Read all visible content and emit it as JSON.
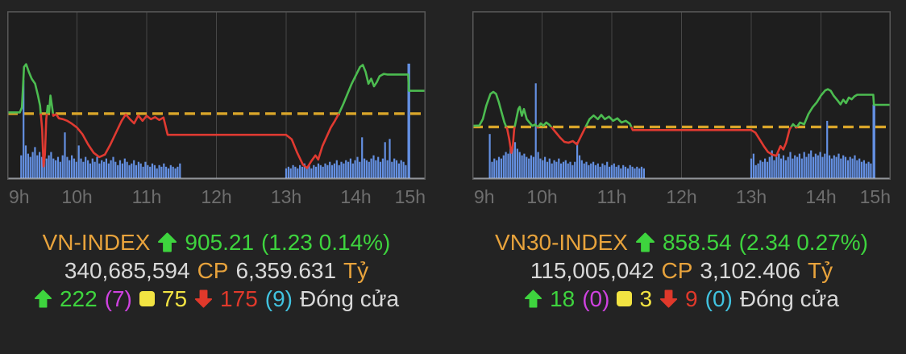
{
  "colors": {
    "bg": "#232323",
    "chart_bg": "#1e1e1e",
    "border": "#585858",
    "grid": "#474747",
    "reference": "#d9a52a",
    "line_green": "#4cbc50",
    "line_red": "#e03a31",
    "volume": "#6490e2",
    "baseline": "#ccd2dc",
    "tick": "#6e6e6e",
    "orange": "#e8a33c",
    "green": "#3ed43e",
    "white": "#d9d9d9",
    "magenta": "#cf42e0",
    "yellow": "#f2e342",
    "red": "#e0392b",
    "cyan": "#41c3e0"
  },
  "panels": [
    {
      "id": "vn-index",
      "index_label": "VN-INDEX",
      "index_value": "905.21",
      "index_change": "(1.23 0.14%)",
      "direction": "up",
      "shares": "340,685,594",
      "shares_unit": "CP",
      "turnover": "6,359.631",
      "turnover_unit": "Tỷ",
      "advancers": "222",
      "ceiling": "(7)",
      "unchanged": "75",
      "decliners": "175",
      "floor": "(9)",
      "session_status": "Đóng cửa",
      "chart_data": {
        "type": "line",
        "title": "VN-INDEX intraday",
        "x_ticks": [
          "9h",
          "10h",
          "11h",
          "12h",
          "13h",
          "14h",
          "15h"
        ],
        "x_range": [
          9,
          15
        ],
        "y_units": "fraction of plot height from top (chart shows no y-axis labels)",
        "reference_level": 0.607,
        "price_line": [
          [
            9.0,
            0.6
          ],
          [
            9.18,
            0.6
          ],
          [
            9.21,
            0.57
          ],
          [
            9.24,
            0.33
          ],
          [
            9.27,
            0.314
          ],
          [
            9.31,
            0.36
          ],
          [
            9.35,
            0.4
          ],
          [
            9.4,
            0.43
          ],
          [
            9.44,
            0.5
          ],
          [
            9.47,
            0.56
          ],
          [
            9.5,
            0.7
          ],
          [
            9.52,
            0.92
          ],
          [
            9.54,
            0.85
          ],
          [
            9.56,
            0.64
          ],
          [
            9.58,
            0.56
          ],
          [
            9.6,
            0.6
          ],
          [
            9.62,
            0.5
          ],
          [
            9.64,
            0.56
          ],
          [
            9.66,
            0.62
          ],
          [
            9.7,
            0.61
          ],
          [
            9.74,
            0.635
          ],
          [
            9.8,
            0.64
          ],
          [
            9.86,
            0.65
          ],
          [
            9.92,
            0.665
          ],
          [
            10.0,
            0.69
          ],
          [
            10.08,
            0.73
          ],
          [
            10.16,
            0.79
          ],
          [
            10.24,
            0.84
          ],
          [
            10.32,
            0.865
          ],
          [
            10.4,
            0.85
          ],
          [
            10.48,
            0.79
          ],
          [
            10.56,
            0.72
          ],
          [
            10.64,
            0.65
          ],
          [
            10.7,
            0.612
          ],
          [
            10.76,
            0.64
          ],
          [
            10.82,
            0.665
          ],
          [
            10.88,
            0.618
          ],
          [
            10.94,
            0.65
          ],
          [
            11.0,
            0.62
          ],
          [
            11.06,
            0.64
          ],
          [
            11.12,
            0.628
          ],
          [
            11.18,
            0.645
          ],
          [
            11.24,
            0.63
          ],
          [
            11.3,
            0.733
          ],
          [
            13.0,
            0.733
          ],
          [
            13.08,
            0.76
          ],
          [
            13.16,
            0.84
          ],
          [
            13.24,
            0.91
          ],
          [
            13.3,
            0.93
          ],
          [
            13.36,
            0.89
          ],
          [
            13.42,
            0.855
          ],
          [
            13.46,
            0.88
          ],
          [
            13.52,
            0.8
          ],
          [
            13.58,
            0.745
          ],
          [
            13.64,
            0.69
          ],
          [
            13.7,
            0.65
          ],
          [
            13.76,
            0.605
          ],
          [
            13.82,
            0.55
          ],
          [
            13.88,
            0.49
          ],
          [
            13.94,
            0.43
          ],
          [
            14.0,
            0.38
          ],
          [
            14.06,
            0.33
          ],
          [
            14.1,
            0.318
          ],
          [
            14.14,
            0.36
          ],
          [
            14.18,
            0.43
          ],
          [
            14.22,
            0.4
          ],
          [
            14.26,
            0.445
          ],
          [
            14.3,
            0.42
          ],
          [
            14.34,
            0.385
          ],
          [
            14.4,
            0.372
          ],
          [
            14.45,
            0.375
          ],
          [
            14.75,
            0.375
          ],
          [
            14.76,
            0.472
          ],
          [
            15.0,
            0.472
          ]
        ],
        "volume_units": "bar heights as fraction of plot height",
        "volume_segments": [
          {
            "start": 9.2,
            "dt": 0.033,
            "heights": [
              0.14,
              0.6,
              0.2,
              0.15,
              0.13,
              0.16,
              0.19,
              0.14,
              0.16,
              0.13,
              0.15,
              0.12,
              0.14,
              0.16,
              0.12,
              0.11,
              0.13,
              0.1,
              0.14,
              0.28,
              0.13,
              0.11,
              0.14,
              0.12,
              0.1,
              0.2,
              0.12,
              0.1,
              0.13,
              0.11,
              0.09,
              0.12,
              0.1,
              0.13,
              0.09,
              0.11,
              0.1,
              0.12,
              0.09,
              0.11,
              0.13,
              0.1,
              0.08,
              0.11,
              0.09,
              0.12,
              0.1,
              0.08,
              0.09,
              0.11,
              0.08,
              0.1,
              0.09,
              0.07,
              0.1,
              0.08,
              0.07,
              0.09,
              0.08,
              0.06,
              0.08,
              0.07,
              0.09,
              0.07,
              0.06,
              0.08,
              0.07,
              0.06,
              0.07,
              0.09
            ]
          },
          {
            "start": 13.0,
            "dt": 0.033,
            "heights": [
              0.06,
              0.07,
              0.06,
              0.08,
              0.07,
              0.06,
              0.08,
              0.07,
              0.09,
              0.07,
              0.08,
              0.06,
              0.08,
              0.07,
              0.09,
              0.08,
              0.07,
              0.09,
              0.08,
              0.1,
              0.08,
              0.09,
              0.11,
              0.08,
              0.1,
              0.09,
              0.11,
              0.1,
              0.12,
              0.09,
              0.11,
              0.13,
              0.1,
              0.25,
              0.12,
              0.11,
              0.1,
              0.12,
              0.14,
              0.11,
              0.13,
              0.1,
              0.12,
              0.22,
              0.11,
              0.24,
              0.1,
              0.12,
              0.11,
              0.09,
              0.11,
              0.1,
              0.08
            ]
          }
        ],
        "volume_spikes": [
          [
            14.76,
            0.7
          ]
        ]
      }
    },
    {
      "id": "vn30-index",
      "index_label": "VN30-INDEX",
      "index_value": "858.54",
      "index_change": "(2.34 0.27%)",
      "direction": "up",
      "shares": "115,005,042",
      "shares_unit": "CP",
      "turnover": "3,102.406",
      "turnover_unit": "Tỷ",
      "advancers": "18",
      "ceiling": "(0)",
      "unchanged": "3",
      "decliners": "9",
      "floor": "(0)",
      "session_status": "Đóng cửa",
      "chart_data": {
        "type": "line",
        "title": "VN30-INDEX intraday",
        "x_ticks": [
          "9h",
          "10h",
          "11h",
          "12h",
          "13h",
          "14h",
          "15h"
        ],
        "x_range": [
          9,
          15
        ],
        "y_units": "fraction of plot height from top (chart shows no y-axis labels)",
        "reference_level": 0.686,
        "price_line": [
          [
            9.0,
            0.68
          ],
          [
            9.1,
            0.678
          ],
          [
            9.15,
            0.64
          ],
          [
            9.2,
            0.56
          ],
          [
            9.26,
            0.49
          ],
          [
            9.3,
            0.478
          ],
          [
            9.34,
            0.49
          ],
          [
            9.38,
            0.54
          ],
          [
            9.42,
            0.6
          ],
          [
            9.46,
            0.66
          ],
          [
            9.5,
            0.7
          ],
          [
            9.53,
            0.76
          ],
          [
            9.56,
            0.84
          ],
          [
            9.58,
            0.8
          ],
          [
            9.6,
            0.7
          ],
          [
            9.63,
            0.64
          ],
          [
            9.66,
            0.58
          ],
          [
            9.68,
            0.567
          ],
          [
            9.71,
            0.62
          ],
          [
            9.74,
            0.58
          ],
          [
            9.78,
            0.64
          ],
          [
            9.82,
            0.66
          ],
          [
            9.86,
            0.68
          ],
          [
            9.9,
            0.672
          ],
          [
            9.94,
            0.69
          ],
          [
            9.98,
            0.665
          ],
          [
            10.02,
            0.678
          ],
          [
            10.06,
            0.66
          ],
          [
            10.1,
            0.672
          ],
          [
            10.14,
            0.69
          ],
          [
            10.2,
            0.72
          ],
          [
            10.26,
            0.75
          ],
          [
            10.32,
            0.775
          ],
          [
            10.38,
            0.78
          ],
          [
            10.44,
            0.77
          ],
          [
            10.5,
            0.79
          ],
          [
            10.56,
            0.74
          ],
          [
            10.62,
            0.69
          ],
          [
            10.68,
            0.64
          ],
          [
            10.74,
            0.618
          ],
          [
            10.8,
            0.64
          ],
          [
            10.85,
            0.615
          ],
          [
            10.9,
            0.64
          ],
          [
            10.96,
            0.625
          ],
          [
            11.02,
            0.65
          ],
          [
            11.08,
            0.635
          ],
          [
            11.14,
            0.66
          ],
          [
            11.2,
            0.65
          ],
          [
            11.26,
            0.668
          ],
          [
            11.3,
            0.705
          ],
          [
            13.0,
            0.705
          ],
          [
            13.06,
            0.72
          ],
          [
            13.12,
            0.76
          ],
          [
            13.18,
            0.8
          ],
          [
            13.24,
            0.835
          ],
          [
            13.3,
            0.85
          ],
          [
            13.36,
            0.858
          ],
          [
            13.42,
            0.8
          ],
          [
            13.46,
            0.82
          ],
          [
            13.5,
            0.78
          ],
          [
            13.55,
            0.7
          ],
          [
            13.6,
            0.67
          ],
          [
            13.65,
            0.69
          ],
          [
            13.7,
            0.66
          ],
          [
            13.76,
            0.67
          ],
          [
            13.82,
            0.61
          ],
          [
            13.88,
            0.57
          ],
          [
            13.94,
            0.54
          ],
          [
            14.0,
            0.5
          ],
          [
            14.06,
            0.47
          ],
          [
            14.1,
            0.462
          ],
          [
            14.14,
            0.472
          ],
          [
            14.18,
            0.5
          ],
          [
            14.24,
            0.53
          ],
          [
            14.28,
            0.552
          ],
          [
            14.32,
            0.525
          ],
          [
            14.36,
            0.545
          ],
          [
            14.4,
            0.512
          ],
          [
            14.44,
            0.522
          ],
          [
            14.48,
            0.505
          ],
          [
            14.52,
            0.495
          ],
          [
            14.75,
            0.495
          ],
          [
            14.76,
            0.555
          ],
          [
            15.0,
            0.555
          ]
        ],
        "volume_units": "bar heights as fraction of plot height",
        "volume_segments": [
          {
            "start": 9.25,
            "dt": 0.033,
            "heights": [
              0.27,
              0.1,
              0.12,
              0.11,
              0.13,
              0.12,
              0.14,
              0.16,
              0.15,
              0.18,
              0.2,
              0.22,
              0.18,
              0.16,
              0.14,
              0.15,
              0.13,
              0.12,
              0.14,
              0.13,
              0.58,
              0.16,
              0.12,
              0.11,
              0.13,
              0.1,
              0.12,
              0.09,
              0.11,
              0.1,
              0.12,
              0.09,
              0.1,
              0.11,
              0.09,
              0.1,
              0.08,
              0.1,
              0.22,
              0.14,
              0.11,
              0.09,
              0.1,
              0.08,
              0.09,
              0.1,
              0.08,
              0.09,
              0.07,
              0.09,
              0.08,
              0.1,
              0.07,
              0.08,
              0.09,
              0.07,
              0.08,
              0.06,
              0.08,
              0.07,
              0.06,
              0.08,
              0.07,
              0.06,
              0.07,
              0.06,
              0.07,
              0.06
            ]
          },
          {
            "start": 13.0,
            "dt": 0.033,
            "heights": [
              0.12,
              0.15,
              0.08,
              0.09,
              0.11,
              0.1,
              0.12,
              0.1,
              0.13,
              0.17,
              0.11,
              0.13,
              0.15,
              0.12,
              0.14,
              0.11,
              0.13,
              0.16,
              0.12,
              0.14,
              0.13,
              0.15,
              0.12,
              0.16,
              0.13,
              0.15,
              0.17,
              0.13,
              0.15,
              0.14,
              0.16,
              0.13,
              0.15,
              0.35,
              0.14,
              0.12,
              0.14,
              0.13,
              0.15,
              0.12,
              0.14,
              0.13,
              0.11,
              0.13,
              0.12,
              0.14,
              0.11,
              0.12,
              0.1,
              0.11,
              0.09,
              0.1,
              0.09
            ]
          }
        ],
        "volume_spikes": [
          [
            14.76,
            0.45
          ]
        ]
      }
    }
  ]
}
